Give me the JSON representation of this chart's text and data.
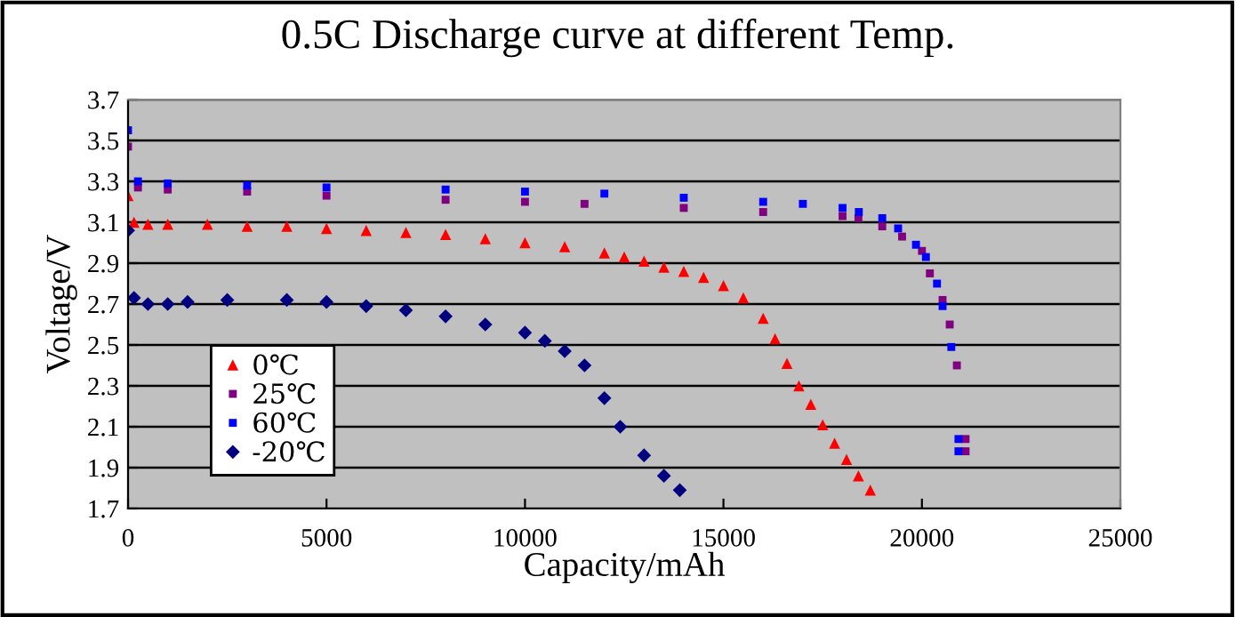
{
  "chart_data": {
    "type": "scatter",
    "title": "0.5C Discharge curve at different Temp.",
    "xlabel": "Capacity/mAh",
    "ylabel": "Voltage/V",
    "xlim": [
      0,
      25000
    ],
    "xticks": [
      0,
      5000,
      10000,
      15000,
      20000,
      25000
    ],
    "ylim": [
      1.7,
      3.7
    ],
    "yticks": [
      1.7,
      1.9,
      2.1,
      2.3,
      2.5,
      2.7,
      2.9,
      3.1,
      3.3,
      3.5,
      3.7
    ],
    "grid": "y",
    "legend": "center left",
    "series": [
      {
        "name": "0℃",
        "color": "#ff0000",
        "marker": "triangle",
        "x": [
          0,
          150,
          500,
          1000,
          2000,
          3000,
          4000,
          5000,
          6000,
          7000,
          8000,
          9000,
          10000,
          11000,
          12000,
          12500,
          13000,
          13500,
          14000,
          14500,
          15000,
          15500,
          16000,
          16300,
          16600,
          16900,
          17200,
          17500,
          17800,
          18100,
          18400,
          18700
        ],
        "values": [
          3.23,
          3.1,
          3.09,
          3.09,
          3.09,
          3.08,
          3.08,
          3.07,
          3.06,
          3.05,
          3.04,
          3.02,
          3.0,
          2.98,
          2.95,
          2.93,
          2.91,
          2.88,
          2.86,
          2.83,
          2.79,
          2.73,
          2.63,
          2.53,
          2.41,
          2.3,
          2.21,
          2.11,
          2.02,
          1.94,
          1.86,
          1.79
        ]
      },
      {
        "name": "25℃",
        "color": "#800080",
        "marker": "square",
        "x": [
          0,
          250,
          1000,
          3000,
          5000,
          8000,
          10000,
          11500,
          14000,
          16000,
          18000,
          18400,
          19000,
          19500,
          20000,
          20200,
          20520,
          20700,
          20880,
          21100,
          21100
        ],
        "values": [
          3.47,
          3.27,
          3.26,
          3.25,
          3.23,
          3.21,
          3.2,
          3.19,
          3.17,
          3.15,
          3.13,
          3.12,
          3.08,
          3.03,
          2.96,
          2.85,
          2.72,
          2.6,
          2.4,
          2.04,
          1.98
        ]
      },
      {
        "name": "60℃",
        "color": "#0000ff",
        "marker": "square",
        "x": [
          0,
          250,
          1000,
          3000,
          5000,
          8000,
          10000,
          12000,
          14000,
          16000,
          17000,
          18000,
          18410,
          19000,
          19400,
          19850,
          20100,
          20380,
          20520,
          20740,
          20920,
          20920
        ],
        "values": [
          3.55,
          3.3,
          3.29,
          3.28,
          3.27,
          3.26,
          3.25,
          3.24,
          3.22,
          3.2,
          3.19,
          3.17,
          3.15,
          3.12,
          3.07,
          2.99,
          2.93,
          2.8,
          2.69,
          2.49,
          2.04,
          1.98
        ]
      },
      {
        "name": "-20℃",
        "color": "#000080",
        "marker": "diamond",
        "x": [
          0,
          150,
          500,
          1000,
          1500,
          2500,
          4000,
          5000,
          6000,
          7000,
          8000,
          9000,
          10000,
          10500,
          11000,
          11500,
          12000,
          12400,
          13000,
          13500,
          13900
        ],
        "values": [
          3.06,
          2.73,
          2.7,
          2.7,
          2.71,
          2.72,
          2.72,
          2.71,
          2.69,
          2.67,
          2.64,
          2.6,
          2.56,
          2.52,
          2.47,
          2.4,
          2.24,
          2.1,
          1.96,
          1.86,
          1.79
        ]
      }
    ]
  }
}
